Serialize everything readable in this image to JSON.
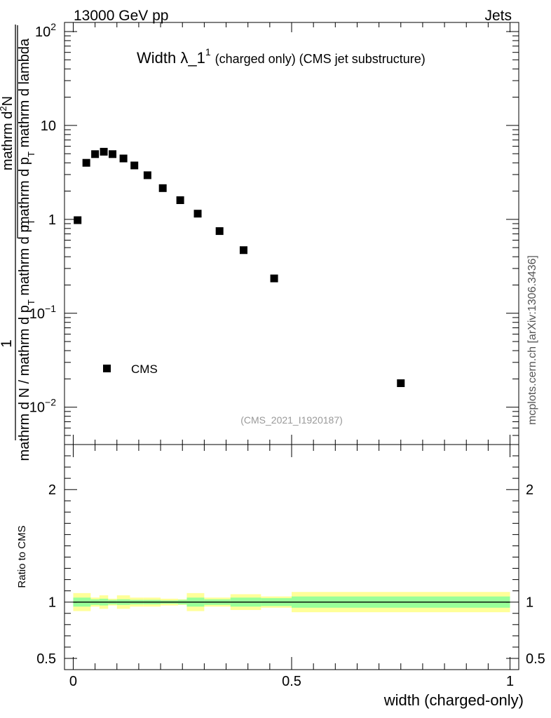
{
  "header": {
    "left": "13000 GeV pp",
    "right": "Jets"
  },
  "plot_title": {
    "main": "Width λ_1",
    "superscript": "1",
    "suffix": "(charged only) (CMS jet substructure)"
  },
  "analysis_tag": "(CMS_2021_I1920187)",
  "side_label": "mcplots.cern.ch [arXiv:1306.3436]",
  "ylabel": {
    "numerator_1": "mathrm d",
    "numerator_sup": "2",
    "numerator_2": "N",
    "denominator_a": "mathrm d p",
    "denominator_a_sub": "T",
    "denominator_b": " mathrm d lambda",
    "outer_numerator": "1",
    "outer_denominator_a": "mathrm d N / mathrm d p",
    "outer_denominator_a_sub": "T",
    "outer_denominator_b": " mathrm d p",
    "outer_denominator_b_sub": "T"
  },
  "ratio_ylabel": "Ratio to CMS",
  "xlabel": "width (charged-only)",
  "colors": {
    "inner_band": "#99ff99",
    "outer_band": "#ffff99",
    "marker": "#000000"
  },
  "chart_data": [
    {
      "type": "scatter",
      "yscale": "log",
      "xlim": [
        -0.02,
        1.02
      ],
      "ylim": [
        0.004,
        125
      ],
      "y_ticks": [
        {
          "value": 0.01,
          "base": "10",
          "exp": "−2"
        },
        {
          "value": 0.1,
          "base": "10",
          "exp": "−1"
        },
        {
          "value": 1,
          "base": "1",
          "exp": ""
        },
        {
          "value": 10,
          "base": "10",
          "exp": ""
        },
        {
          "value": 100,
          "base": "10",
          "exp": "2"
        }
      ],
      "legend": {
        "label": "CMS",
        "position": "lower-left"
      },
      "series": [
        {
          "name": "CMS",
          "x": [
            0.01,
            0.03,
            0.05,
            0.07,
            0.09,
            0.115,
            0.14,
            0.17,
            0.205,
            0.245,
            0.285,
            0.335,
            0.39,
            0.46,
            0.75
          ],
          "y": [
            0.98,
            4.0,
            4.95,
            5.25,
            4.95,
            4.45,
            3.75,
            2.95,
            2.15,
            1.6,
            1.15,
            0.75,
            0.47,
            0.235,
            0.018
          ]
        }
      ]
    },
    {
      "type": "area",
      "ylim": [
        0.4,
        2.4
      ],
      "xlim": [
        -0.02,
        1.02
      ],
      "x_ticks": [
        {
          "value": 0,
          "label": "0"
        },
        {
          "value": 0.5,
          "label": "0.5"
        },
        {
          "value": 1,
          "label": "1"
        }
      ],
      "y_ticks": [
        {
          "value": 0.5,
          "label": "0.5"
        },
        {
          "value": 1,
          "label": "1"
        },
        {
          "value": 2,
          "label": "2"
        }
      ],
      "reference_line": 1,
      "bands": {
        "edges": [
          0.0,
          0.04,
          0.06,
          0.08,
          0.1,
          0.13,
          0.16,
          0.2,
          0.24,
          0.26,
          0.3,
          0.36,
          0.43,
          0.5,
          1.0
        ],
        "inner": [
          0.04,
          0.025,
          0.03,
          0.02,
          0.025,
          0.02,
          0.02,
          0.015,
          0.02,
          0.04,
          0.025,
          0.04,
          0.035,
          0.05
        ],
        "outer": [
          0.08,
          0.04,
          0.06,
          0.03,
          0.06,
          0.04,
          0.04,
          0.03,
          0.025,
          0.08,
          0.04,
          0.07,
          0.05,
          0.09
        ]
      }
    }
  ]
}
